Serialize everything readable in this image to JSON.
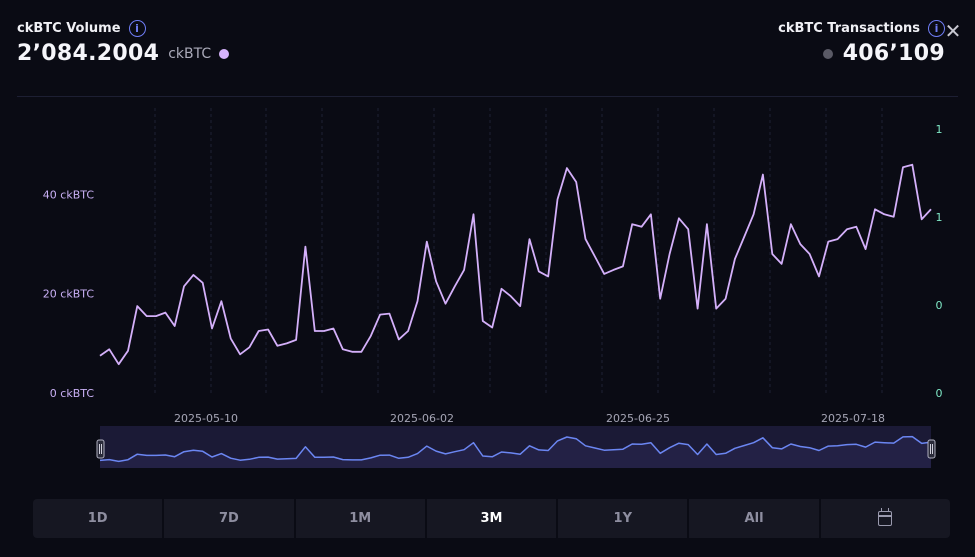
{
  "volume": {
    "title": "ckBTC Volume",
    "value": "2’084.2004",
    "unit": "ckBTC",
    "dot_color": "#d8b4fe"
  },
  "transactions": {
    "title": "ckBTC Transactions",
    "value": "406’109",
    "dot_color": "#5a5a66"
  },
  "info_glyph": "i",
  "close_glyph": "✕",
  "range_buttons": [
    "1D",
    "7D",
    "1M",
    "3M",
    "1Y",
    "All"
  ],
  "active_range": "3M",
  "colors": {
    "volume_line": "#d4b0fa",
    "navigator_line": "#6b86f2",
    "left_axis_text": "#c9b0f5",
    "right_axis_text": "#7fe8c6",
    "accent": "#6f7df5"
  },
  "chart_data": {
    "type": "line",
    "series": [
      {
        "name": "ckBTC Volume",
        "values": [
          7.5,
          8.8,
          5.8,
          8.5,
          17.5,
          15.5,
          15.5,
          16.2,
          13.5,
          21.5,
          23.8,
          22.2,
          13.0,
          18.5,
          11.0,
          7.8,
          9.2,
          12.5,
          12.8,
          9.5,
          10.0,
          10.7,
          29.5,
          12.5,
          12.5,
          13.0,
          8.8,
          8.3,
          8.3,
          11.5,
          15.8,
          16.0,
          10.8,
          12.5,
          18.5,
          30.5,
          22.5,
          18.0,
          21.5,
          24.8,
          36.0,
          14.5,
          13.2,
          21.0,
          19.5,
          17.5,
          31.0,
          24.5,
          23.5,
          39.0,
          45.3,
          42.5,
          31.0,
          27.5,
          24.0,
          24.8,
          25.5,
          34.0,
          33.5,
          36.0,
          19.0,
          28.0,
          35.2,
          33.0,
          17.0,
          34.0,
          17.0,
          19.0,
          27.0,
          31.5,
          36.0,
          44.0,
          28.0,
          26.0,
          34.0,
          30.0,
          28.0,
          23.5,
          30.5,
          31.0,
          33.0,
          33.5,
          29.0,
          37.0,
          36.0,
          35.5,
          45.5,
          46.0,
          35.0,
          37.0
        ]
      }
    ],
    "x_ticks": [
      "2025-05-10",
      "2025-06-02",
      "2025-06-25",
      "2025-07-18"
    ],
    "y_left_ticks": [
      "0 ckBTC",
      "20 ckBTC",
      "40 ckBTC"
    ],
    "y_right_ticks": [
      "0",
      "0",
      "1",
      "1"
    ],
    "ylim": [
      0,
      55
    ],
    "grid": "vertical-dashed",
    "navigator": "bottom"
  }
}
